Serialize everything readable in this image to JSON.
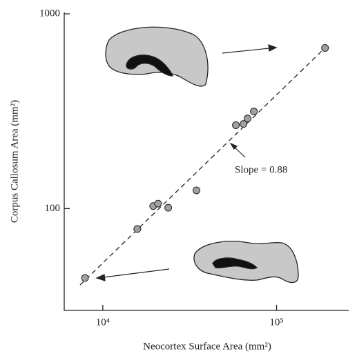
{
  "chart_data": {
    "type": "scatter",
    "xlabel": "Neocortex Surface Area (mm²)",
    "ylabel": "Corpus Callosum Area (mm²)",
    "annotation": "Slope = 0.88",
    "x": [
      7900,
      15800,
      19500,
      20800,
      23800,
      34600,
      58300,
      64500,
      68100,
      74000,
      190000
    ],
    "values": [
      44,
      78.5,
      103,
      106,
      101,
      124,
      268,
      272,
      290,
      315,
      668
    ],
    "color": "#a0a0a0",
    "trend_line": {
      "x": [
        7400,
        190000
      ],
      "y": [
        40.5,
        668
      ]
    },
    "xlim": [
      6000,
      260000
    ],
    "ylim": [
      30,
      1000
    ],
    "xticks": [
      {
        "value": 10000,
        "label": "10⁴"
      },
      {
        "value": 100000,
        "label": "10⁵"
      }
    ],
    "yticks": [
      100,
      1000
    ],
    "xscale": "log",
    "yscale": "log",
    "grid": false
  }
}
